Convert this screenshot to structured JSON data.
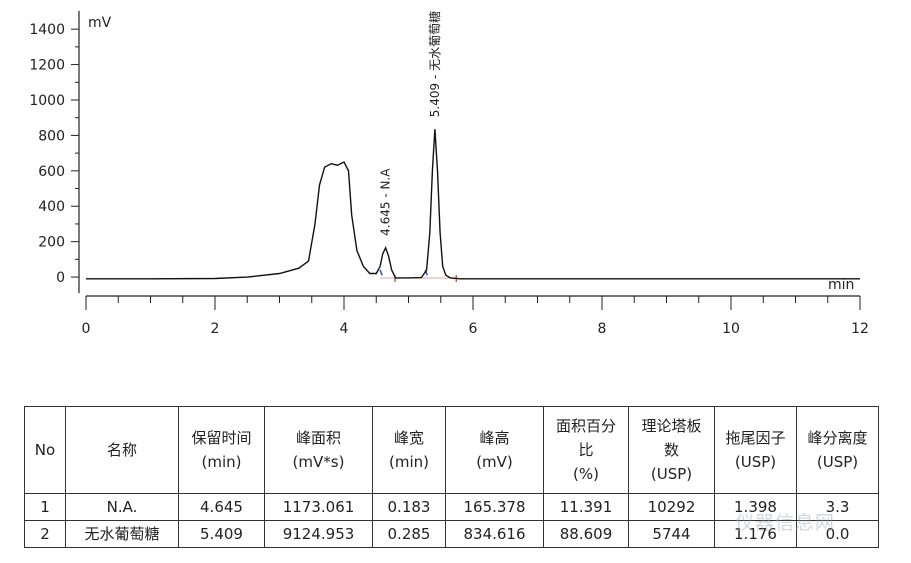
{
  "chart_data": {
    "type": "line",
    "title": "",
    "ylabel": "mV",
    "xlabel": "min",
    "xlim": [
      0,
      12
    ],
    "ylim": [
      -90,
      1480
    ],
    "x_ticks": [
      0,
      2,
      4,
      6,
      8,
      10,
      12
    ],
    "y_ticks": [
      0,
      200,
      400,
      600,
      800,
      1000,
      1200,
      1400
    ],
    "peaks": [
      {
        "label": "4.645 - N.A",
        "x": 4.645,
        "y": 165
      },
      {
        "label": "5.409 - 无水葡萄糖",
        "x": 5.409,
        "y": 835
      }
    ],
    "series": [
      {
        "points": [
          [
            0.0,
            -10
          ],
          [
            1.0,
            -10
          ],
          [
            2.0,
            -8
          ],
          [
            2.5,
            0
          ],
          [
            3.0,
            20
          ],
          [
            3.3,
            50
          ],
          [
            3.45,
            90
          ],
          [
            3.55,
            300
          ],
          [
            3.62,
            520
          ],
          [
            3.7,
            620
          ],
          [
            3.8,
            640
          ],
          [
            3.9,
            632
          ],
          [
            4.0,
            650
          ],
          [
            4.07,
            600
          ],
          [
            4.12,
            350
          ],
          [
            4.2,
            150
          ],
          [
            4.3,
            60
          ],
          [
            4.4,
            20
          ],
          [
            4.5,
            20
          ],
          [
            4.56,
            60
          ],
          [
            4.6,
            130
          ],
          [
            4.645,
            165
          ],
          [
            4.69,
            120
          ],
          [
            4.74,
            40
          ],
          [
            4.8,
            -5
          ],
          [
            5.0,
            -5
          ],
          [
            5.2,
            -3
          ],
          [
            5.28,
            40
          ],
          [
            5.33,
            250
          ],
          [
            5.37,
            600
          ],
          [
            5.409,
            835
          ],
          [
            5.45,
            600
          ],
          [
            5.49,
            250
          ],
          [
            5.53,
            60
          ],
          [
            5.58,
            10
          ],
          [
            5.65,
            -5
          ],
          [
            5.8,
            -10
          ],
          [
            6.0,
            -10
          ],
          [
            12.0,
            -10
          ]
        ]
      }
    ]
  },
  "table": {
    "headers": [
      [
        "No"
      ],
      [
        "名称"
      ],
      [
        "保留时间",
        "(min)"
      ],
      [
        "峰面积",
        "(mV*s)"
      ],
      [
        "峰宽",
        "(min)"
      ],
      [
        "峰高",
        "(mV)"
      ],
      [
        "面积百分",
        "比",
        "(%)"
      ],
      [
        "理论塔板",
        "数",
        "(USP)"
      ],
      [
        "拖尾因子",
        "(USP)"
      ],
      [
        "峰分离度",
        "(USP)"
      ]
    ],
    "rows": [
      [
        "1",
        "N.A.",
        "4.645",
        "1173.061",
        "0.183",
        "165.378",
        "11.391",
        "10292",
        "1.398",
        "3.3"
      ],
      [
        "2",
        "无水葡萄糖",
        "5.409",
        "9124.953",
        "0.285",
        "834.616",
        "88.609",
        "5744",
        "1.176",
        "0.0"
      ]
    ]
  },
  "watermark": "仪器信息网"
}
